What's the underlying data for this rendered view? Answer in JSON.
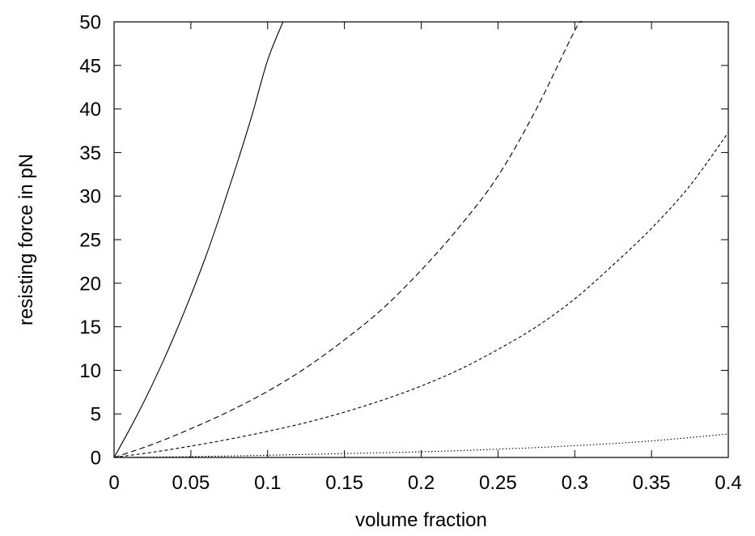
{
  "chart_data": {
    "type": "line",
    "title": "",
    "xlabel": "volume fraction",
    "ylabel": "resisting force in pN",
    "xlim": [
      0,
      0.4
    ],
    "ylim": [
      0,
      50
    ],
    "xticks": [
      0,
      0.05,
      0.1,
      0.15,
      0.2,
      0.25,
      0.3,
      0.35,
      0.4
    ],
    "xtick_labels": [
      "0",
      "0.05",
      "0.1",
      "0.15",
      "0.2",
      "0.25",
      "0.3",
      "0.35",
      "0.4"
    ],
    "yticks": [
      0,
      5,
      10,
      15,
      20,
      25,
      30,
      35,
      40,
      45,
      50
    ],
    "ytick_labels": [
      "0",
      "5",
      "10",
      "15",
      "20",
      "25",
      "30",
      "35",
      "40",
      "45",
      "50"
    ],
    "grid": false,
    "legend": "none",
    "series": [
      {
        "line_style": "solid",
        "color": "#000000",
        "x": [
          0,
          0.01,
          0.02,
          0.03,
          0.04,
          0.05,
          0.06,
          0.07,
          0.08,
          0.09,
          0.1,
          0.11
        ],
        "y": [
          0,
          3.2,
          6.6,
          10.3,
          14.3,
          18.6,
          23.2,
          28.3,
          33.7,
          39.4,
          45.6,
          50
        ]
      },
      {
        "line_style": "dashed",
        "color": "#000000",
        "x": [
          0,
          0.025,
          0.05,
          0.075,
          0.1,
          0.125,
          0.15,
          0.175,
          0.2,
          0.225,
          0.25,
          0.275,
          0.3,
          0.305
        ],
        "y": [
          0,
          1.5,
          3.3,
          5.3,
          7.6,
          10.3,
          13.5,
          17.1,
          21.5,
          26.5,
          32.3,
          40.0,
          49.0,
          50
        ]
      },
      {
        "line_style": "short-dashed",
        "color": "#000000",
        "x": [
          0,
          0.025,
          0.05,
          0.075,
          0.1,
          0.125,
          0.15,
          0.175,
          0.2,
          0.225,
          0.25,
          0.275,
          0.3,
          0.325,
          0.35,
          0.375,
          0.4
        ],
        "y": [
          0,
          0.6,
          1.3,
          2.1,
          3.0,
          4.0,
          5.2,
          6.6,
          8.2,
          10.1,
          12.4,
          15.0,
          18.2,
          22.1,
          26.3,
          31.2,
          37.3
        ]
      },
      {
        "line_style": "dotted",
        "color": "#000000",
        "x": [
          0,
          0.05,
          0.1,
          0.15,
          0.2,
          0.25,
          0.3,
          0.35,
          0.4
        ],
        "y": [
          0,
          0.1,
          0.25,
          0.45,
          0.65,
          0.95,
          1.35,
          1.9,
          2.7
        ]
      }
    ]
  }
}
